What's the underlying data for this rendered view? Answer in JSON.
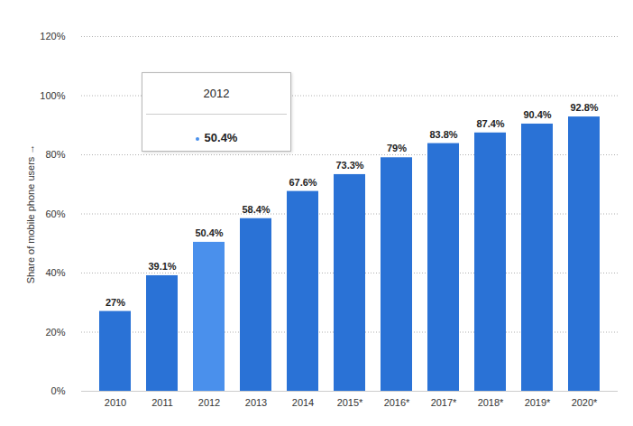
{
  "chart_data": {
    "type": "bar",
    "y_label": "Share of mobile phone users",
    "categories": [
      "2010",
      "2011",
      "2012",
      "2013",
      "2014",
      "2015*",
      "2016*",
      "2017*",
      "2018*",
      "2019*",
      "2020*"
    ],
    "values": [
      27,
      39.1,
      50.4,
      58.4,
      67.6,
      73.3,
      79,
      83.8,
      87.4,
      90.4,
      92.8
    ],
    "value_labels": [
      "27%",
      "39.1%",
      "50.4%",
      "58.4%",
      "67.6%",
      "73.3%",
      "79%",
      "83.8%",
      "87.4%",
      "90.4%",
      "92.8%"
    ],
    "colors": [
      "#2a72d6",
      "#2a72d6",
      "#4a90ec",
      "#2a72d6",
      "#2a72d6",
      "#2a72d6",
      "#2a72d6",
      "#2a72d6",
      "#2a72d6",
      "#2a72d6",
      "#2a72d6"
    ],
    "ylim": [
      0,
      120
    ],
    "yticks": [
      {
        "value": 0,
        "label": "0%"
      },
      {
        "value": 20,
        "label": "20%"
      },
      {
        "value": 40,
        "label": "40%"
      },
      {
        "value": 60,
        "label": "60%"
      },
      {
        "value": 80,
        "label": "80%"
      },
      {
        "value": 100,
        "label": "100%"
      },
      {
        "value": 120,
        "label": "120%"
      }
    ],
    "grid": true,
    "data_labels": true,
    "tooltip": {
      "title": "2012",
      "value": 50.4,
      "label": "50.4%"
    }
  }
}
